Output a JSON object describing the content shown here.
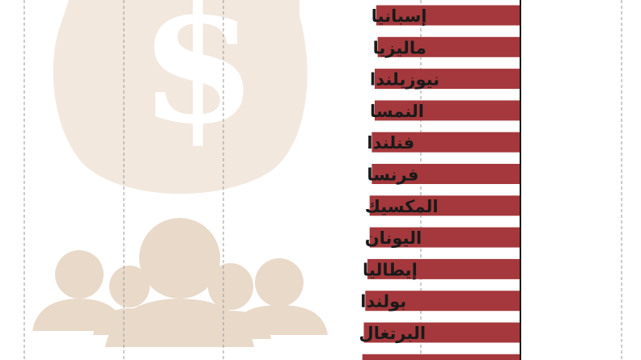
{
  "chart_data": {
    "type": "bar",
    "orientation": "horizontal",
    "categories": [
      "إسبانيا",
      "ماليزيا",
      "نيوزيلندا",
      "النمسا",
      "فنلندا",
      "فرنسا",
      "المكسيك",
      "اليونان",
      "إيطاليا",
      "بولندا",
      "البرتغال",
      ""
    ],
    "values": [
      198,
      196,
      200,
      200,
      204,
      204,
      207,
      207,
      210,
      213,
      215,
      217
    ],
    "title": "",
    "xlabel": "",
    "ylabel": "",
    "grid": true,
    "legend": "none",
    "colors": {
      "bar": "#a5383c",
      "axis": "#1a1a1a",
      "grid": "#9a9a9a",
      "decoration": "#ecdfd2"
    }
  }
}
